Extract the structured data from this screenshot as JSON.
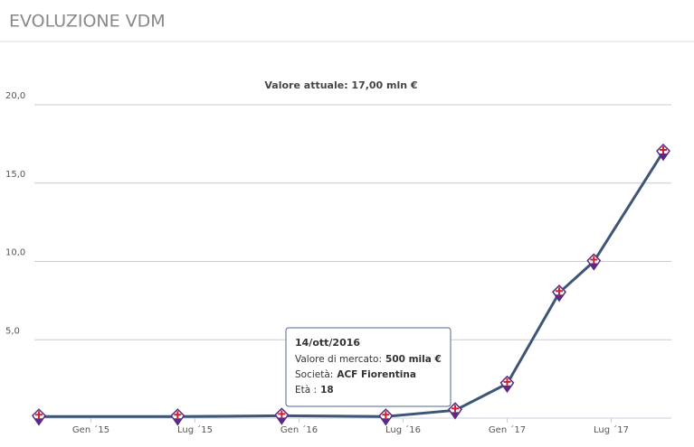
{
  "header": {
    "title": "EVOLUZIONE VDM"
  },
  "chart_data": {
    "type": "line",
    "title": "Valore attuale: 17,00 mln €",
    "x": [
      "2014-10",
      "2015-06",
      "2015-12",
      "2016-06",
      "2016-10",
      "2017-01",
      "2017-04",
      "2017-06",
      "2017-10"
    ],
    "series": [
      {
        "name": "Valore di mercato",
        "color": "#3d5577",
        "values": [
          0.1,
          0.1,
          0.15,
          0.1,
          0.5,
          2.2,
          8,
          10,
          17
        ]
      }
    ],
    "xlim": [
      "2014-10",
      "2017-10"
    ],
    "xticks": [
      {
        "value": "2015-01",
        "label": "Gen ´15"
      },
      {
        "value": "2015-07",
        "label": "Lug ´15"
      },
      {
        "value": "2016-01",
        "label": "Gen ´16"
      },
      {
        "value": "2016-07",
        "label": "Lug ´16"
      },
      {
        "value": "2017-01",
        "label": "Gen ´17"
      },
      {
        "value": "2017-07",
        "label": "Lug ´17"
      }
    ],
    "ylim": [
      0,
      20
    ],
    "yticks": [
      {
        "value": 5,
        "label": "5,0"
      },
      {
        "value": 10,
        "label": "10,0"
      },
      {
        "value": 15,
        "label": "15,0"
      },
      {
        "value": 20,
        "label": "20,0"
      }
    ],
    "grid": true,
    "tooltip": {
      "point": 4,
      "date": "14/ott/2016",
      "lines": [
        {
          "label": "Valore di mercato:",
          "value": "500 mila €"
        },
        {
          "label": "Società:",
          "value": "ACF Fiorentina"
        },
        {
          "label": "Età :",
          "value": "18"
        }
      ]
    }
  }
}
